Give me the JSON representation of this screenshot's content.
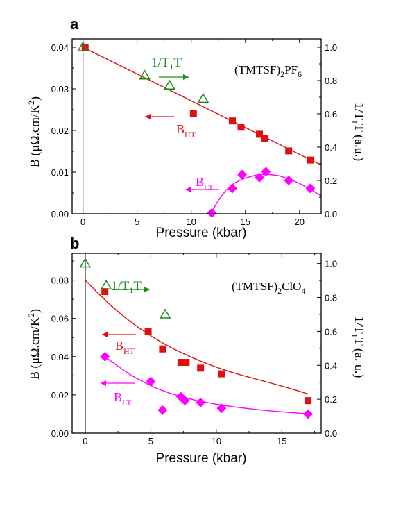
{
  "colors": {
    "red": "#e01010",
    "magenta": "#ff00ff",
    "green": "#1a8c1a",
    "axis": "#000000"
  },
  "chart_data": [
    {
      "type": "scatter",
      "panel_label": "a",
      "xlabel": "Pressure (kbar)",
      "ylabel_left": [
        "B (",
        "μΩ.cm/K",
        "2",
        ")"
      ],
      "ylabel_right": [
        "1/T",
        "1",
        "T (a.u.)"
      ],
      "compound": [
        "(TMTSF)",
        "2",
        "PF",
        "6"
      ],
      "xlim": [
        -1,
        22
      ],
      "ylim": [
        0,
        0.042
      ],
      "y2lim": [
        0,
        1.05
      ],
      "xticks": [
        0,
        5,
        10,
        15,
        20
      ],
      "xtick_labels": [
        "0",
        "5",
        "10",
        "15",
        "20"
      ],
      "yticks": [
        0,
        0.01,
        0.02,
        0.03,
        0.04
      ],
      "ytick_labels": [
        "0.00",
        "0.01",
        "0.02",
        "0.03",
        "0.04"
      ],
      "y2ticks": [
        0,
        0.2,
        0.4,
        0.6,
        0.8,
        1.0
      ],
      "y2tick_labels": [
        "0.0",
        "0.2",
        "0.4",
        "0.6",
        "0.8",
        "1.0"
      ],
      "series": [
        {
          "name": "B_HT",
          "marker": "square",
          "color": "#e01010",
          "x": [
            0.2,
            10.2,
            13.8,
            14.6,
            16.3,
            16.8,
            19,
            21
          ],
          "y": [
            0.04,
            0.024,
            0.0223,
            0.0208,
            0.0191,
            0.018,
            0.0151,
            0.0129
          ]
        },
        {
          "name": "B_LT",
          "marker": "diamond",
          "color": "#ff00ff",
          "x": [
            11.9,
            13.8,
            14.7,
            16.3,
            16.9,
            19,
            21
          ],
          "y": [
            0.0002,
            0.0061,
            0.0094,
            0.0087,
            0.0101,
            0.008,
            0.0061
          ]
        },
        {
          "name": "1/T1T",
          "marker": "triangle-open",
          "color": "#1a8c1a",
          "axis": "right",
          "x": [
            0,
            5.7,
            8,
            11.1
          ],
          "y": [
            1.0,
            0.83,
            0.77,
            0.69
          ]
        }
      ],
      "fits": [
        {
          "color": "#e01010",
          "x": [
            0,
            22
          ],
          "y": [
            0.04,
            0.0117
          ]
        },
        {
          "color": "#ff00ff",
          "x": [
            11.8,
            12.5,
            13.2,
            14,
            15,
            16,
            16.9,
            18,
            19,
            20,
            21,
            22
          ],
          "y": [
            0,
            0.0032,
            0.0056,
            0.0074,
            0.0086,
            0.0093,
            0.0095,
            0.0092,
            0.0084,
            0.0073,
            0.0059,
            0.0043
          ]
        }
      ],
      "annotations": {
        "green": {
          "label": "1/T",
          "sub": "1",
          "suffix": "T"
        },
        "red": {
          "label": "B",
          "sub": "HT"
        },
        "magenta": {
          "label": "B",
          "sub": "LT"
        }
      }
    },
    {
      "type": "scatter",
      "panel_label": "b",
      "xlabel": "Pressure (kbar)",
      "ylabel_left": [
        "B (",
        "μΩ.cm/K",
        "2",
        ")"
      ],
      "ylabel_right": [
        "1/T",
        "1",
        "T (a. u.)"
      ],
      "compound": [
        "(TMTSF)",
        "2",
        "ClO",
        "4"
      ],
      "xlim": [
        -1,
        18
      ],
      "ylim": [
        0,
        0.094
      ],
      "y2lim": [
        0,
        1.06
      ],
      "xticks": [
        0,
        5,
        10,
        15
      ],
      "xtick_labels": [
        "0",
        "5",
        "10",
        "15"
      ],
      "yticks": [
        0,
        0.02,
        0.04,
        0.06,
        0.08
      ],
      "ytick_labels": [
        "0.00",
        "0.02",
        "0.04",
        "0.06",
        "0.08"
      ],
      "y2ticks": [
        0,
        0.2,
        0.4,
        0.6,
        0.8,
        1.0
      ],
      "y2tick_labels": [
        "0.0",
        "0.2",
        "0.4",
        "0.6",
        "0.8",
        "1.0"
      ],
      "series": [
        {
          "name": "B_HT",
          "marker": "square",
          "color": "#e01010",
          "x": [
            1.5,
            4.8,
            5.9,
            7.3,
            7.7,
            8.8,
            10.4,
            17
          ],
          "y": [
            0.074,
            0.053,
            0.044,
            0.037,
            0.037,
            0.034,
            0.031,
            0.017
          ]
        },
        {
          "name": "B_LT",
          "marker": "diamond",
          "color": "#ff00ff",
          "x": [
            1.5,
            5.0,
            5.9,
            7.3,
            7.6,
            8.8,
            10.4,
            17
          ],
          "y": [
            0.04,
            0.027,
            0.012,
            0.019,
            0.017,
            0.016,
            0.013,
            0.01
          ]
        },
        {
          "name": "1/T1T",
          "marker": "triangle-open",
          "color": "#1a8c1a",
          "axis": "right",
          "x": [
            0,
            1.6,
            6.1
          ],
          "y": [
            1.0,
            0.87,
            0.7
          ]
        }
      ],
      "fits": [
        {
          "color": "#e01010",
          "x": [
            0,
            1,
            2,
            3,
            4,
            5,
            6,
            7,
            8,
            9,
            10,
            11,
            12,
            13,
            14,
            15,
            16,
            17
          ],
          "y": [
            0.08,
            0.073,
            0.0665,
            0.0607,
            0.0555,
            0.0509,
            0.0468,
            0.0432,
            0.04,
            0.0371,
            0.0345,
            0.0322,
            0.0302,
            0.0283,
            0.0265,
            0.0246,
            0.0226,
            0.0205
          ]
        },
        {
          "color": "#ff00ff",
          "x": [
            1.5,
            2.5,
            3.5,
            4.5,
            5.5,
            6.5,
            7.5,
            8.5,
            10,
            11.5,
            13,
            14.5,
            16,
            17
          ],
          "y": [
            0.04,
            0.035,
            0.0303,
            0.0265,
            0.0233,
            0.0208,
            0.0188,
            0.0171,
            0.0151,
            0.0136,
            0.0124,
            0.0114,
            0.0106,
            0.0101
          ]
        }
      ],
      "annotations": {
        "green": {
          "label": "1/T",
          "sub": "1",
          "suffix": "T"
        },
        "red": {
          "label": "B",
          "sub": "HT"
        },
        "magenta": {
          "label": "B",
          "sub": "LT"
        }
      }
    }
  ]
}
